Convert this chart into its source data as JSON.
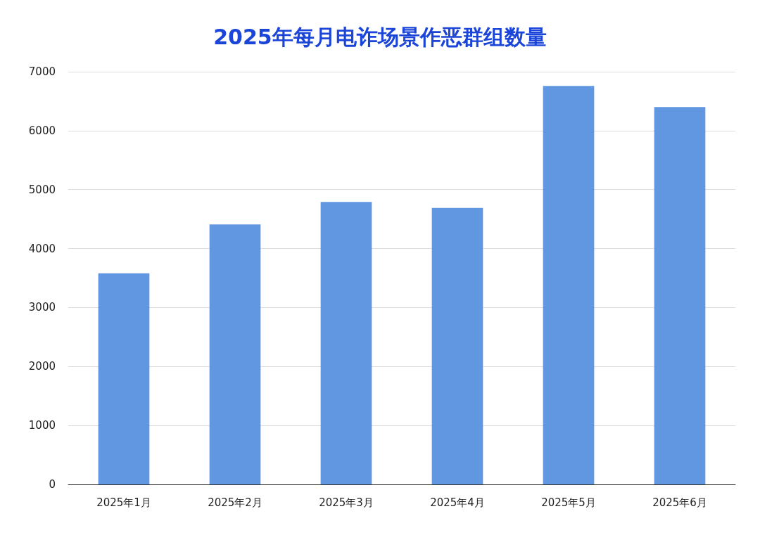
{
  "chart_data": {
    "type": "bar",
    "title": "2025年每月电诈场景作恶群组数量",
    "categories": [
      "2025年1月",
      "2025年2月",
      "2025年3月",
      "2025年4月",
      "2025年5月",
      "2025年6月"
    ],
    "values": [
      3580,
      4410,
      4790,
      4690,
      6760,
      6400
    ],
    "color": "#6097e0",
    "ylim": [
      0,
      7000
    ],
    "yticks": [
      0,
      1000,
      2000,
      3000,
      4000,
      5000,
      6000,
      7000
    ],
    "grid": "y"
  }
}
